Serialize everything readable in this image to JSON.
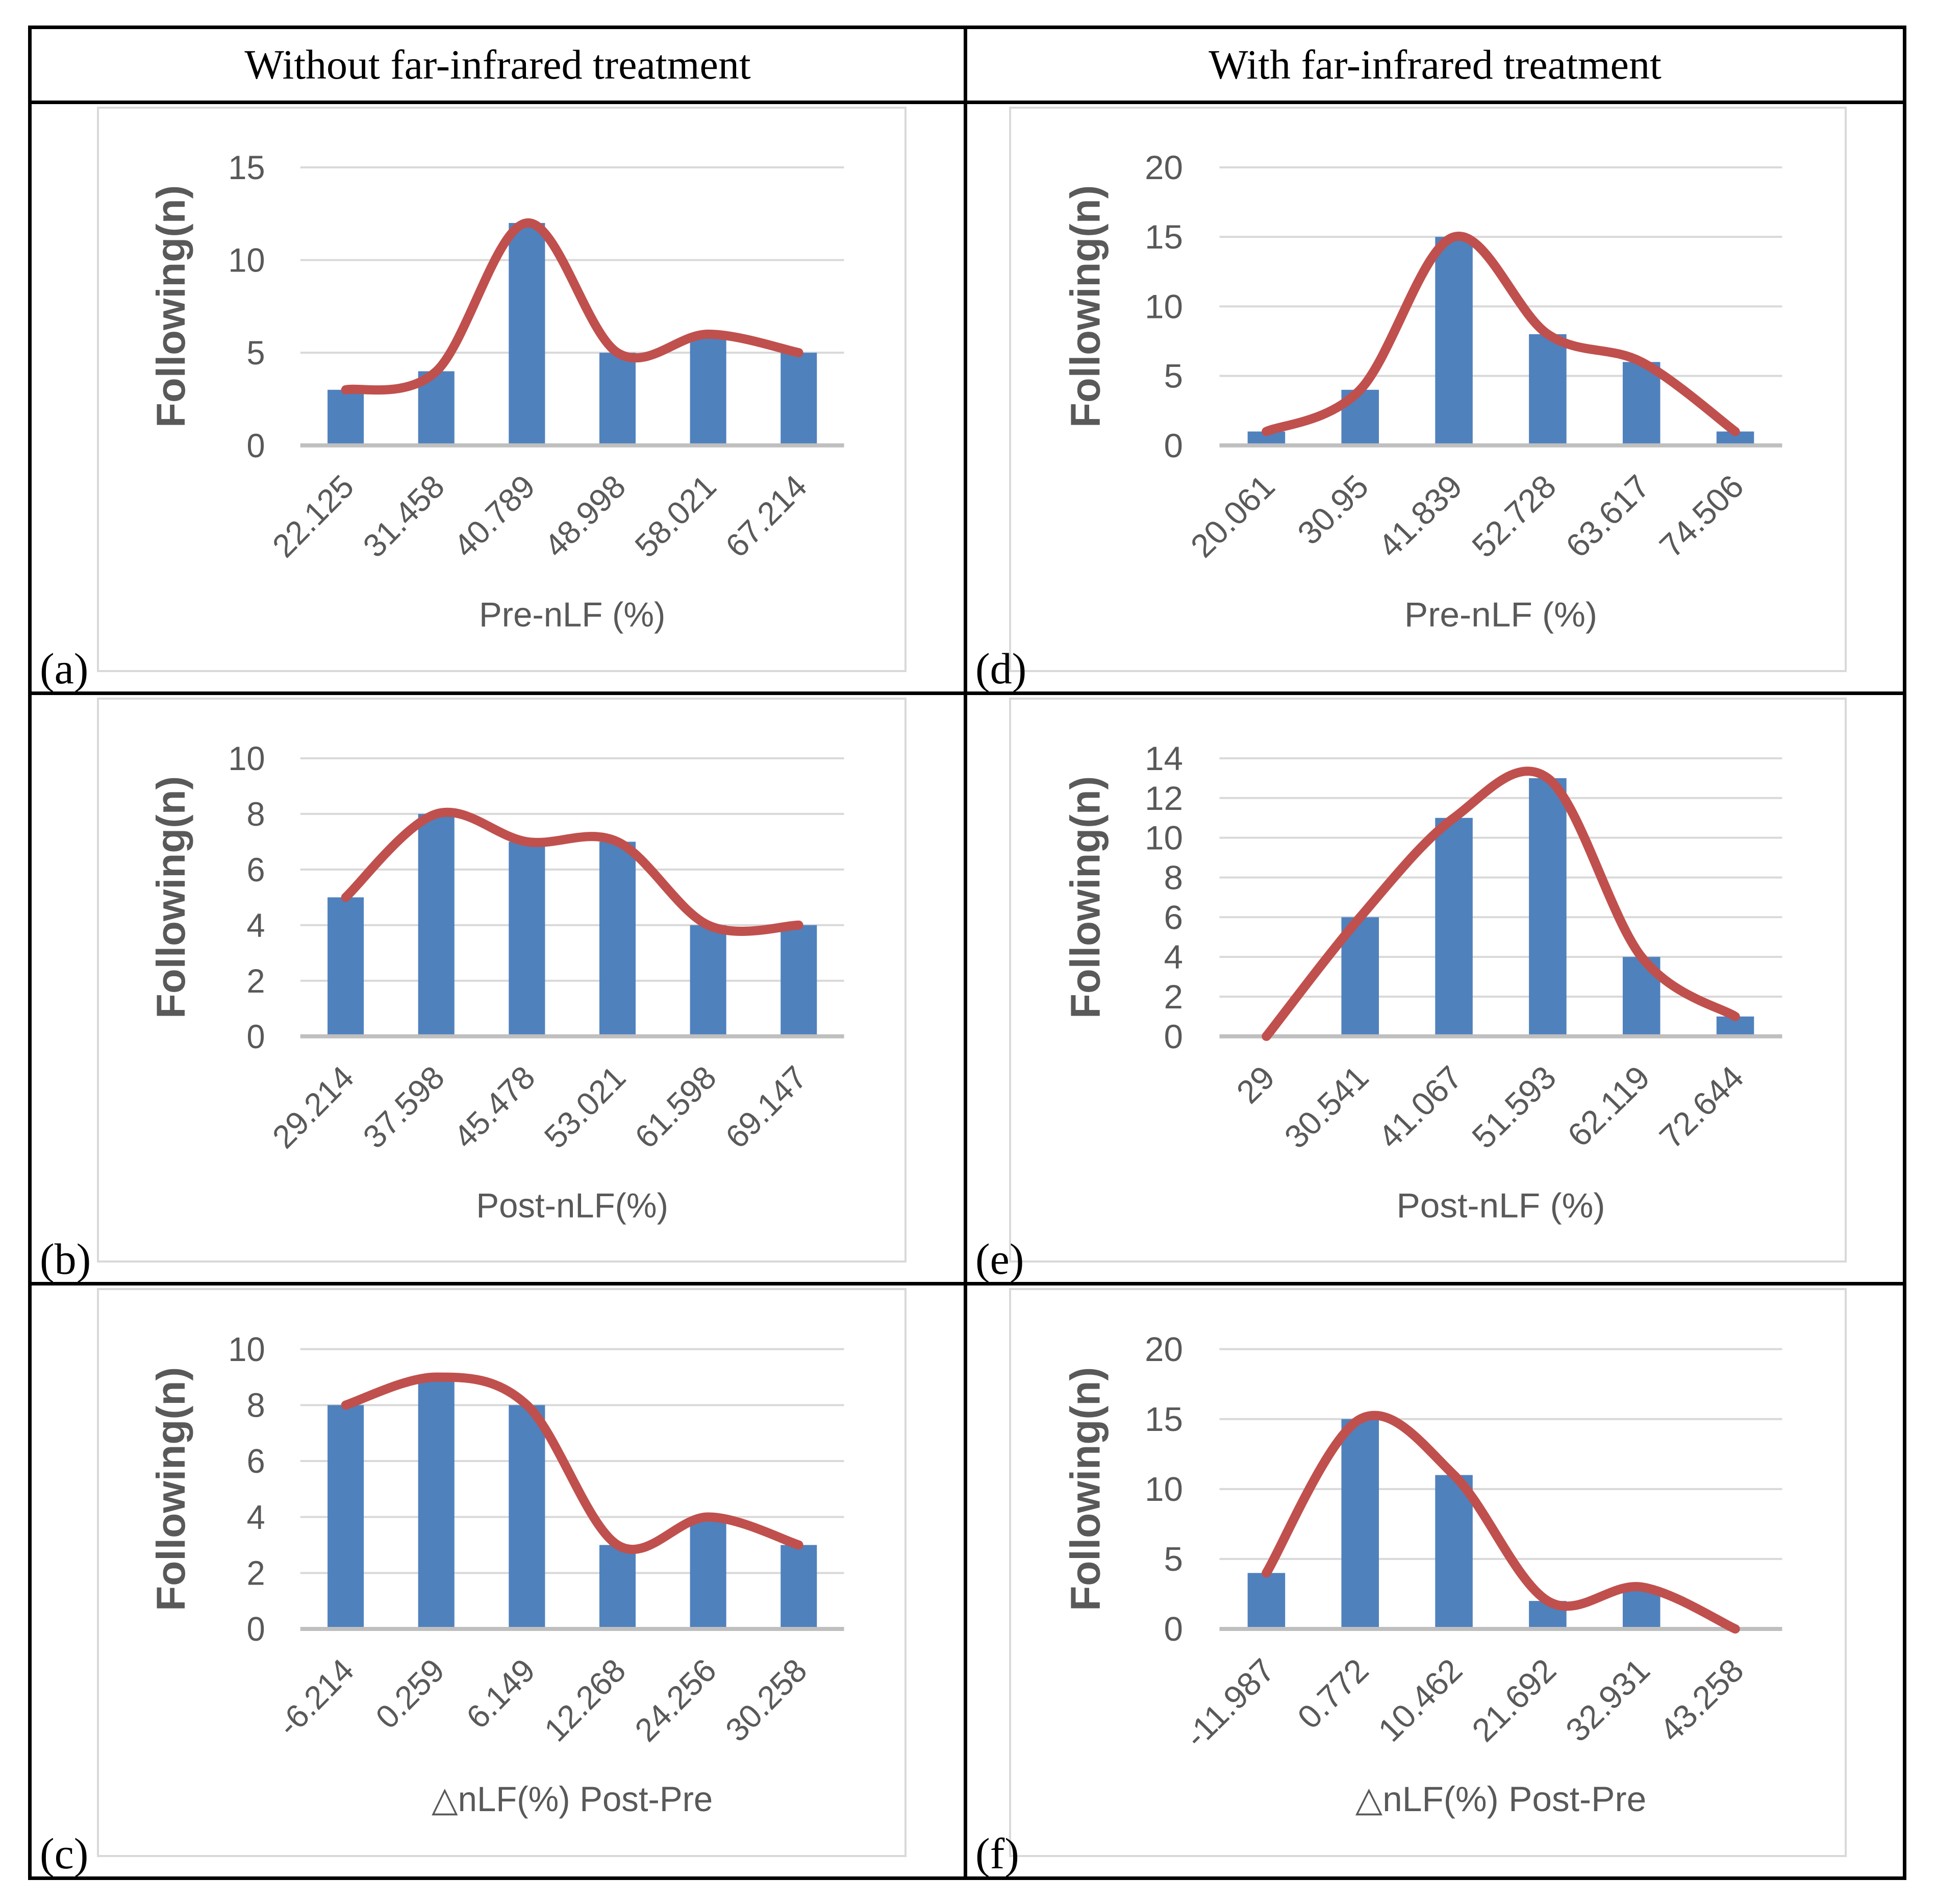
{
  "headers": {
    "left": "Without far-infrared treatment",
    "right": "With far-infrared treatment"
  },
  "palette": {
    "bar": "#4F81BD",
    "curve": "#C0504D",
    "gridline": "#D9D9D9",
    "axis_line": "#BFBFBF",
    "axis_text": "#595959",
    "table_border": "#000000",
    "panel_border": "#D9D9D9"
  },
  "chart_data": [
    {
      "panel_label": "(a)",
      "group": "Without far-infrared treatment",
      "type": "bar",
      "overlay": "smooth-line-through-values",
      "title": "",
      "xlabel": "Pre-nLF (%)",
      "ylabel": "Following(n)",
      "categories": [
        "22.125",
        "31.458",
        "40.789",
        "48.998",
        "58.021",
        "67.214"
      ],
      "values": [
        3,
        4,
        12,
        5,
        6,
        5
      ],
      "ylim": [
        0,
        15
      ],
      "ystep": 5,
      "grid": true,
      "legend": "none"
    },
    {
      "panel_label": "(b)",
      "group": "Without far-infrared treatment",
      "type": "bar",
      "overlay": "smooth-line-through-values",
      "title": "",
      "xlabel": "Post-nLF(%)",
      "ylabel": "Following(n)",
      "categories": [
        "29.214",
        "37.598",
        "45.478",
        "53.021",
        "61.598",
        "69.147"
      ],
      "values": [
        5,
        8,
        7,
        7,
        4,
        4
      ],
      "ylim": [
        0,
        10
      ],
      "ystep": 2,
      "grid": true,
      "legend": "none"
    },
    {
      "panel_label": "(c)",
      "group": "Without far-infrared treatment",
      "type": "bar",
      "overlay": "smooth-line-through-values",
      "title": "",
      "xlabel": "△nLF(%) Post-Pre",
      "ylabel": "Following(n)",
      "categories": [
        "-6.214",
        "0.259",
        "6.149",
        "12.268",
        "24.256",
        "30.258"
      ],
      "values": [
        8,
        9,
        8,
        3,
        4,
        3
      ],
      "ylim": [
        0,
        10
      ],
      "ystep": 2,
      "grid": true,
      "legend": "none"
    },
    {
      "panel_label": "(d)",
      "group": "With far-infrared treatment",
      "type": "bar",
      "overlay": "smooth-line-through-values",
      "title": "",
      "xlabel": "Pre-nLF (%)",
      "ylabel": "Following(n)",
      "categories": [
        "20.061",
        "30.95",
        "41.839",
        "52.728",
        "63.617",
        "74.506"
      ],
      "values": [
        1,
        4,
        15,
        8,
        6,
        1
      ],
      "ylim": [
        0,
        20
      ],
      "ystep": 5,
      "grid": true,
      "legend": "none"
    },
    {
      "panel_label": "(e)",
      "group": "With far-infrared treatment",
      "type": "bar",
      "overlay": "smooth-line-through-values",
      "title": "",
      "xlabel": "Post-nLF (%)",
      "ylabel": "Following(n)",
      "categories": [
        "29",
        "30.541",
        "41.067",
        "51.593",
        "62.119",
        "72.644"
      ],
      "values": [
        0,
        6,
        11,
        13,
        4,
        1
      ],
      "ylim": [
        0,
        14
      ],
      "ystep": 2,
      "grid": true,
      "legend": "none"
    },
    {
      "panel_label": "(f)",
      "group": "With far-infrared treatment",
      "type": "bar",
      "overlay": "smooth-line-through-values",
      "title": "",
      "xlabel": "△nLF(%) Post-Pre",
      "ylabel": "Following(n)",
      "categories": [
        "-11.987",
        "0.772",
        "10.462",
        "21.692",
        "32.931",
        "43.258"
      ],
      "values": [
        4,
        15,
        11,
        2,
        3,
        0
      ],
      "ylim": [
        0,
        20
      ],
      "ystep": 5,
      "grid": true,
      "legend": "none"
    }
  ]
}
